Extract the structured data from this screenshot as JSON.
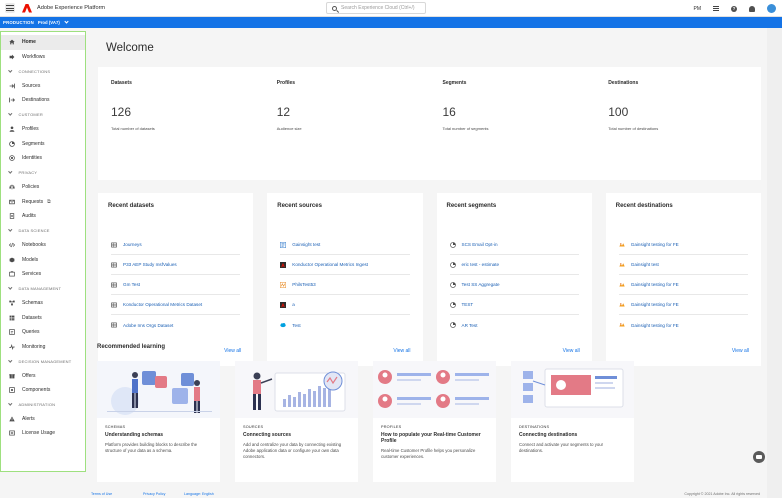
{
  "header": {
    "app_title": "Adobe Experience Platform",
    "search_placeholder": "Search Experience Cloud (Ctrl+/)",
    "org_initials": "PM"
  },
  "sandbox": {
    "label": "PRODUCTION",
    "value": "Prod (VA7)"
  },
  "sidebar": {
    "items": [
      {
        "type": "item",
        "label": "Home",
        "icon": "home-icon",
        "active": true
      },
      {
        "type": "item",
        "label": "Workflows",
        "icon": "workflows-icon"
      },
      {
        "type": "section",
        "label": "CONNECTIONS"
      },
      {
        "type": "item",
        "label": "Sources",
        "icon": "sources-icon"
      },
      {
        "type": "item",
        "label": "Destinations",
        "icon": "destinations-icon"
      },
      {
        "type": "section",
        "label": "CUSTOMER"
      },
      {
        "type": "item",
        "label": "Profiles",
        "icon": "user-icon"
      },
      {
        "type": "item",
        "label": "Segments",
        "icon": "segments-icon"
      },
      {
        "type": "item",
        "label": "Identities",
        "icon": "identities-icon"
      },
      {
        "type": "section",
        "label": "PRIVACY"
      },
      {
        "type": "item",
        "label": "Policies",
        "icon": "policies-icon"
      },
      {
        "type": "item",
        "label": "Requests",
        "icon": "requests-icon",
        "external": true
      },
      {
        "type": "item",
        "label": "Audits",
        "icon": "audits-icon"
      },
      {
        "type": "section",
        "label": "DATA SCIENCE"
      },
      {
        "type": "item",
        "label": "Notebooks",
        "icon": "code-icon"
      },
      {
        "type": "item",
        "label": "Models",
        "icon": "models-icon"
      },
      {
        "type": "item",
        "label": "Services",
        "icon": "services-icon"
      },
      {
        "type": "section",
        "label": "DATA MANAGEMENT"
      },
      {
        "type": "item",
        "label": "Schemas",
        "icon": "schemas-icon"
      },
      {
        "type": "item",
        "label": "Datasets",
        "icon": "datasets-icon"
      },
      {
        "type": "item",
        "label": "Queries",
        "icon": "queries-icon"
      },
      {
        "type": "item",
        "label": "Monitoring",
        "icon": "monitoring-icon"
      },
      {
        "type": "section",
        "label": "DECISION MANAGEMENT"
      },
      {
        "type": "item",
        "label": "Offers",
        "icon": "offers-icon"
      },
      {
        "type": "item",
        "label": "Components",
        "icon": "components-icon"
      },
      {
        "type": "section",
        "label": "ADMINISTRATION"
      },
      {
        "type": "item",
        "label": "Alerts",
        "icon": "alert-icon"
      },
      {
        "type": "item",
        "label": "License Usage",
        "icon": "license-icon"
      }
    ]
  },
  "main": {
    "title": "Welcome",
    "stats": [
      {
        "label": "Datasets",
        "value": "126",
        "sub": "Total number of datasets"
      },
      {
        "label": "Profiles",
        "value": "12",
        "sub": "Audience size"
      },
      {
        "label": "Segments",
        "value": "16",
        "sub": "Total number of segments"
      },
      {
        "label": "Destinations",
        "value": "100",
        "sub": "Total number of destinations"
      }
    ],
    "recent": [
      {
        "title": "Recent datasets",
        "view_all": "View all",
        "items": [
          {
            "label": "Journeys",
            "icon": "dataset-icon"
          },
          {
            "label": "P33 AEP Study msfValues",
            "icon": "dataset-icon"
          },
          {
            "label": "Gm Test",
            "icon": "dataset-icon"
          },
          {
            "label": "Konductor Operational Metrics Dataset",
            "icon": "dataset-icon"
          },
          {
            "label": "Adobe Ims Orgs Dataset",
            "icon": "dataset-icon"
          }
        ]
      },
      {
        "title": "Recent sources",
        "view_all": "View all",
        "items": [
          {
            "label": "Gainsight test",
            "icon": "gainsight-icon"
          },
          {
            "label": "Konductor Operational Metrics Ingest",
            "icon": "adobe-icon"
          },
          {
            "label": "PhilsTest53",
            "icon": "orange-connector-icon"
          },
          {
            "label": "a",
            "icon": "adobe-icon"
          },
          {
            "label": "Test",
            "icon": "salesforce-icon"
          }
        ]
      },
      {
        "title": "Recent segments",
        "view_all": "View all",
        "items": [
          {
            "label": "SCS Email Opt-in",
            "icon": "segment-icon"
          },
          {
            "label": "eric test - estimate",
            "icon": "segment-icon"
          },
          {
            "label": "Test SS Aggregate",
            "icon": "segment-icon"
          },
          {
            "label": "TEST",
            "icon": "segment-icon"
          },
          {
            "label": "AR Test",
            "icon": "segment-icon"
          }
        ]
      },
      {
        "title": "Recent destinations",
        "view_all": "View all",
        "items": [
          {
            "label": "Gainsight testing for FE",
            "icon": "gainsight-dest-icon"
          },
          {
            "label": "Gainsight test",
            "icon": "gainsight-dest-icon"
          },
          {
            "label": "Gainsight testing for FE",
            "icon": "gainsight-dest-icon"
          },
          {
            "label": "Gainsight testing for FE",
            "icon": "gainsight-dest-icon"
          },
          {
            "label": "Gainsight testing for FE",
            "icon": "gainsight-dest-icon"
          }
        ]
      }
    ],
    "learning": {
      "title": "Recommended learning",
      "cards": [
        {
          "category": "SCHEMAS",
          "title": "Understanding schemas",
          "desc": "Platform provides building blocks to describe the structure of your data as a schema."
        },
        {
          "category": "SOURCES",
          "title": "Connecting sources",
          "desc": "Add and centralize your data by connecting existing Adobe application data or configure your own data connectors."
        },
        {
          "category": "PROFILES",
          "title": "How to populate your Real-time Customer Profile",
          "desc": "Real-time Customer Profile helps you personalize customer experiences."
        },
        {
          "category": "DESTINATIONS",
          "title": "Connecting destinations",
          "desc": "Connect and activate your segments to your destinations."
        }
      ]
    }
  },
  "footer": {
    "terms": "Terms of Use",
    "privacy": "Privacy Policy",
    "language": "Language: English",
    "copyright": "Copyright © 2021 Adobe Inc. All rights reserved"
  },
  "colors": {
    "accent": "#1473e6",
    "sandbox_bar": "#1473e6",
    "sidebar_outline": "#9ee07f"
  }
}
